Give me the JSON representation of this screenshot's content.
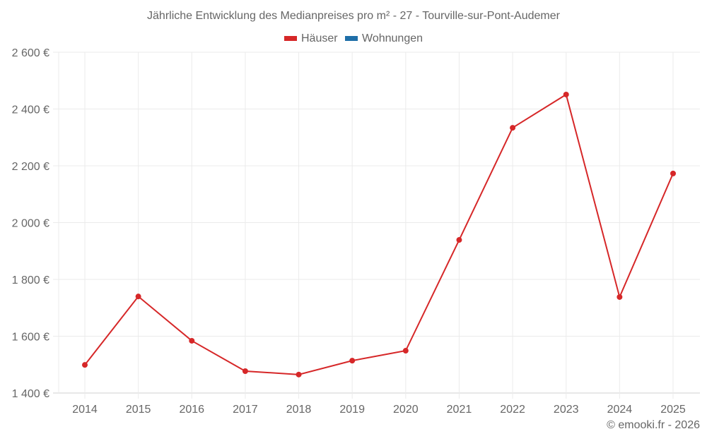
{
  "title": "Jährliche Entwicklung des Medianpreises pro m² - 27 - Tourville-sur-Pont-Audemer",
  "legend": [
    {
      "label": "Häuser",
      "color": "#d62728"
    },
    {
      "label": "Wohnungen",
      "color": "#1f6fa8"
    }
  ],
  "footer": "© emooki.fr - 2026",
  "chart_data": {
    "type": "line",
    "title": "Jährliche Entwicklung des Medianpreises pro m² - 27 - Tourville-sur-Pont-Audemer",
    "xlabel": "",
    "ylabel": "",
    "categories": [
      "2014",
      "2015",
      "2016",
      "2017",
      "2018",
      "2019",
      "2020",
      "2021",
      "2022",
      "2023",
      "2024",
      "2025"
    ],
    "series": [
      {
        "name": "Häuser",
        "color": "#d62728",
        "values": [
          1499,
          1740,
          1584,
          1477,
          1465,
          1514,
          1549,
          1939,
          2334,
          2451,
          1738,
          2173
        ]
      },
      {
        "name": "Wohnungen",
        "color": "#1f6fa8",
        "values": []
      }
    ],
    "ylim": [
      1400,
      2600
    ],
    "yticks": [
      1400,
      1600,
      1800,
      2000,
      2200,
      2400,
      2600
    ],
    "ytick_labels": [
      "1 400 €",
      "1 600 €",
      "1 800 €",
      "2 000 €",
      "2 200 €",
      "2 400 €",
      "2 600 €"
    ],
    "grid": true,
    "legend_position": "top"
  }
}
